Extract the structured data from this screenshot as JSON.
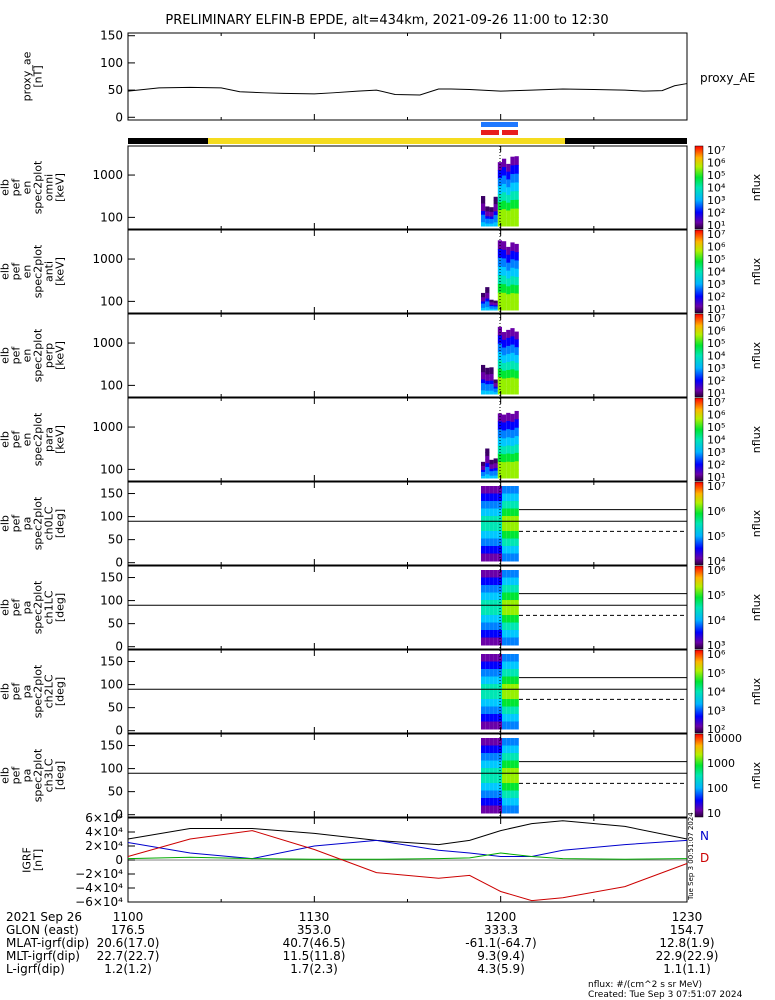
{
  "title": "PRELIMINARY ELFIN-B EPDE, alt=434km, 2021-09-26 11:00 to 12:30",
  "colors": {
    "sunlight_bar": "#f5dc1e",
    "shadow_bar": "#000000",
    "science_blue": "#1e78ff",
    "science_red": "#e81e1e",
    "bx": "#0000cc",
    "by": "#00aa00",
    "bz": "#cc0000",
    "btot": "#000000",
    "dashed": "#000000"
  },
  "chart_data": [
    {
      "name": "proxy_ae",
      "type": "line",
      "ylabel": "proxy_ae [nT]",
      "legend": "proxy_AE",
      "ylim": [
        -5,
        155
      ],
      "yticks": [
        "150",
        "100",
        "50",
        "0"
      ],
      "x_minutes": [
        0,
        5,
        10,
        15,
        18,
        22,
        25,
        30,
        33,
        37,
        40,
        43,
        47,
        50,
        52,
        55,
        60,
        65,
        70,
        75,
        80,
        83,
        86,
        88,
        90
      ],
      "values": [
        48,
        54,
        55,
        54,
        47,
        45,
        44,
        43,
        45,
        48,
        50,
        42,
        41,
        52,
        52,
        51,
        48,
        50,
        52,
        51,
        50,
        48,
        49,
        58,
        62
      ]
    },
    {
      "name": "omni",
      "type": "heatmap",
      "ylabel": "elb pef en spec2plot omni [keV]",
      "yticks": [
        "1000",
        "100"
      ],
      "colorbar": {
        "label": "nflux",
        "ticks": [
          "10⁷",
          "10⁶",
          "10⁵",
          "10⁴",
          "10³",
          "10²",
          "10¹"
        ]
      }
    },
    {
      "name": "anti",
      "type": "heatmap",
      "ylabel": "elb pef en spec2plot anti [keV]",
      "yticks": [
        "1000",
        "100"
      ],
      "colorbar": {
        "label": "nflux",
        "ticks": [
          "10⁷",
          "10⁶",
          "10⁵",
          "10⁴",
          "10³",
          "10²",
          "10¹"
        ]
      }
    },
    {
      "name": "perp",
      "type": "heatmap",
      "ylabel": "elb pef en spec2plot perp [keV]",
      "yticks": [
        "1000",
        "100"
      ],
      "colorbar": {
        "label": "nflux",
        "ticks": [
          "10⁷",
          "10⁶",
          "10⁵",
          "10⁴",
          "10³",
          "10²",
          "10¹"
        ]
      }
    },
    {
      "name": "para",
      "type": "heatmap",
      "ylabel": "elb pef en spec2plot para [keV]",
      "yticks": [
        "1000",
        "100"
      ],
      "colorbar": {
        "label": "nflux",
        "ticks": [
          "10⁷",
          "10⁶",
          "10⁵",
          "10⁴",
          "10³",
          "10²",
          "10¹"
        ]
      }
    },
    {
      "name": "ch0LC",
      "type": "heatmap",
      "ylabel": "elb pef pa spec2plot ch0LC [deg]",
      "yticks": [
        "150",
        "100",
        "50",
        "0"
      ],
      "colorbar": {
        "label": "nflux",
        "ticks": [
          "10⁷",
          "10⁶",
          "10⁵",
          "10⁴"
        ]
      }
    },
    {
      "name": "ch1LC",
      "type": "heatmap",
      "ylabel": "elb pef pa spec2plot ch1LC [deg]",
      "yticks": [
        "150",
        "100",
        "50",
        "0"
      ],
      "colorbar": {
        "label": "nflux",
        "ticks": [
          "10⁶",
          "10⁵",
          "10⁴",
          "10³"
        ]
      }
    },
    {
      "name": "ch2LC",
      "type": "heatmap",
      "ylabel": "elb pef pa spec2plot ch2LC [deg]",
      "yticks": [
        "150",
        "100",
        "50",
        "0"
      ],
      "colorbar": {
        "label": "nflux",
        "ticks": [
          "10⁶",
          "10⁵",
          "10⁴",
          "10³",
          "10²"
        ]
      }
    },
    {
      "name": "ch3LC",
      "type": "heatmap",
      "ylabel": "elb pef pa spec2plot ch3LC [deg]",
      "yticks": [
        "150",
        "100",
        "50",
        "0"
      ],
      "colorbar": {
        "label": "nflux",
        "ticks": [
          "10000",
          "1000",
          "100",
          "10"
        ]
      }
    },
    {
      "name": "igrf",
      "type": "line",
      "ylabel": "IGRF [nT]",
      "yticks": [
        "6×10⁴",
        "4×10⁴",
        "2×10⁴",
        "0",
        "−2×10⁴",
        "−4×10⁴",
        "−6×10⁴"
      ],
      "legend": [
        "N",
        "D"
      ],
      "ylim": [
        -60000,
        60000
      ],
      "x_minutes": [
        0,
        10,
        20,
        30,
        40,
        50,
        55,
        60,
        65,
        70,
        80,
        90
      ],
      "series": [
        {
          "name": "btot",
          "values": [
            30000,
            45000,
            45000,
            38000,
            28000,
            22000,
            28000,
            42000,
            52000,
            56000,
            48000,
            30000
          ]
        },
        {
          "name": "bx",
          "values": [
            25000,
            10000,
            2000,
            20000,
            28000,
            14000,
            10000,
            5000,
            5000,
            14000,
            22000,
            28000
          ]
        },
        {
          "name": "by",
          "values": [
            2000,
            4000,
            2000,
            1000,
            1000,
            2000,
            3000,
            10000,
            5000,
            2000,
            1000,
            2000
          ]
        },
        {
          "name": "bz",
          "values": [
            5000,
            30000,
            42000,
            15000,
            -18000,
            -26000,
            -22000,
            -45000,
            -58000,
            -54000,
            -38000,
            -5000
          ]
        }
      ]
    }
  ],
  "xticks_minutes": [
    0,
    30,
    60,
    90
  ],
  "annotation_table": {
    "rows": [
      {
        "label": "2021 Sep 26",
        "values": [
          "1100",
          "1130",
          "1200",
          "1230"
        ]
      },
      {
        "label": "GLON (east)",
        "values": [
          "176.5",
          "353.0",
          "333.3",
          "154.7"
        ]
      },
      {
        "label": "MLAT-igrf(dip)",
        "values": [
          "20.6(17.0)",
          "40.7(46.5)",
          "-61.1(-64.7)",
          "12.8(1.9)"
        ]
      },
      {
        "label": "MLT-igrf(dip)",
        "values": [
          "22.7(22.7)",
          "11.5(11.8)",
          "9.3(9.4)",
          "22.9(22.9)"
        ]
      },
      {
        "label": "L-igrf(dip)",
        "values": [
          "1.2(1.2)",
          "1.7(2.3)",
          "4.3(5.9)",
          "1.1(1.1)"
        ]
      }
    ]
  },
  "footer": {
    "units": "nflux: #/(cm^2 s sr MeV)",
    "created": "Created: Tue Sep  3 07:51:07 2024",
    "side_stamp": "Tue Sep  3 00:51:07 2024"
  }
}
